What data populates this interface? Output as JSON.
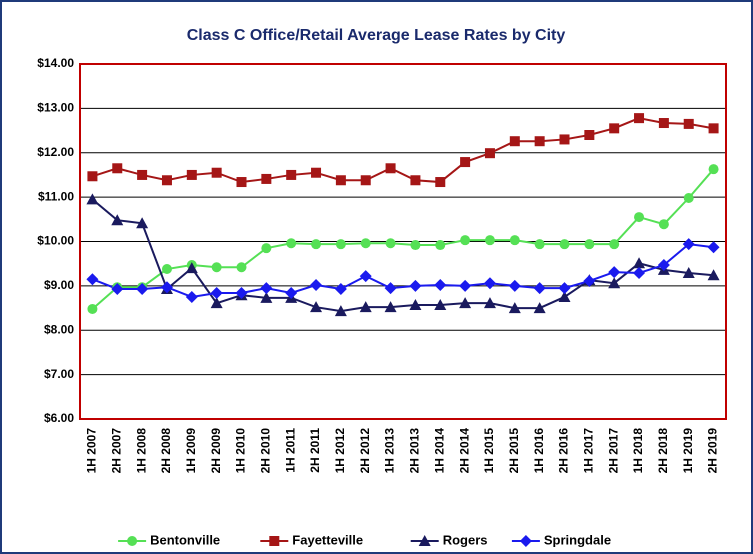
{
  "chart_data": {
    "type": "line",
    "title": "Class C Office/Retail Average Lease Rates by City",
    "categories": [
      "1H 2007",
      "2H 2007",
      "1H 2008",
      "2H 2008",
      "1H 2009",
      "2H 2009",
      "1H 2010",
      "2H 2010",
      "1H 2011",
      "2H 2011",
      "1H 2012",
      "2H 2012",
      "1H 2013",
      "2H 2013",
      "1H 2014",
      "2H 2014",
      "1H 2015",
      "2H 2015",
      "1H 2016",
      "2H 2016",
      "1H 2017",
      "2H 2017",
      "1H 2018",
      "2H 2018",
      "1H 2019",
      "2H 2019"
    ],
    "series": [
      {
        "name": "Bentonville",
        "color": "#55e055",
        "marker": "circle",
        "values": [
          8.48,
          8.97,
          8.97,
          9.38,
          9.47,
          9.42,
          9.42,
          9.85,
          9.96,
          9.94,
          9.94,
          9.96,
          9.96,
          9.92,
          9.92,
          10.03,
          10.03,
          10.03,
          9.94,
          9.94,
          9.94,
          9.94,
          10.55,
          10.39,
          10.98,
          11.63
        ]
      },
      {
        "name": "Fayetteville",
        "color": "#a51616",
        "marker": "square",
        "values": [
          11.47,
          11.65,
          11.5,
          11.38,
          11.5,
          11.55,
          11.34,
          11.41,
          11.5,
          11.55,
          11.38,
          11.38,
          11.65,
          11.38,
          11.34,
          11.79,
          11.99,
          12.26,
          12.26,
          12.3,
          12.4,
          12.55,
          12.78,
          12.67,
          12.65,
          12.55
        ]
      },
      {
        "name": "Rogers",
        "color": "#1a1a5e",
        "marker": "triangle",
        "values": [
          10.95,
          10.48,
          10.41,
          8.93,
          9.4,
          8.61,
          8.79,
          8.73,
          8.73,
          8.52,
          8.43,
          8.52,
          8.52,
          8.57,
          8.57,
          8.61,
          8.61,
          8.5,
          8.5,
          8.75,
          9.13,
          9.06,
          9.51,
          9.36,
          9.29,
          9.24
        ]
      },
      {
        "name": "Springdale",
        "color": "#1a1aee",
        "marker": "diamond",
        "values": [
          9.15,
          8.93,
          8.93,
          8.97,
          8.75,
          8.84,
          8.84,
          8.95,
          8.84,
          9.02,
          8.93,
          9.22,
          8.95,
          9.0,
          9.02,
          9.0,
          9.06,
          9.0,
          8.95,
          8.95,
          9.11,
          9.31,
          9.29,
          9.47,
          9.94,
          9.87
        ]
      }
    ],
    "ylim": [
      6,
      14
    ],
    "yticks": [
      {
        "value": 6,
        "label": "$6.00"
      },
      {
        "value": 7,
        "label": "$7.00"
      },
      {
        "value": 8,
        "label": "$8.00"
      },
      {
        "value": 9,
        "label": "$9.00"
      },
      {
        "value": 10,
        "label": "$10.00"
      },
      {
        "value": 11,
        "label": "$11.00"
      },
      {
        "value": 12,
        "label": "$12.00"
      },
      {
        "value": 13,
        "label": "$13.00"
      },
      {
        "value": 14,
        "label": "$14.00"
      }
    ],
    "grid": true,
    "legend": "bottom"
  }
}
